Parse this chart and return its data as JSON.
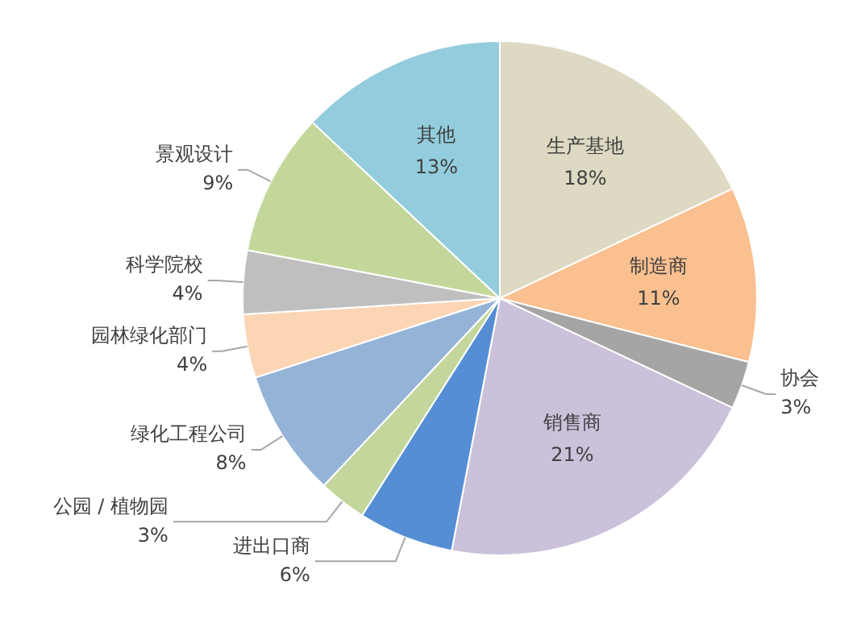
{
  "chart_data": {
    "type": "pie",
    "categories": [
      "生产基地",
      "制造商",
      "协会",
      "销售商",
      "进出口商",
      "公园 / 植物园",
      "绿化工程公司",
      "园林绿化部门",
      "科学院校",
      "景观设计",
      "其他"
    ],
    "values": [
      18,
      11,
      3,
      21,
      6,
      3,
      8,
      4,
      4,
      9,
      13
    ],
    "colors": [
      "#ddd9c3",
      "#fac090",
      "#a5a5a5",
      "#ccc1da",
      "#558ed5",
      "#c3d69b",
      "#95b3d7",
      "#fcd5b5",
      "#bfbfbf",
      "#c4d79b",
      "#93cddd"
    ],
    "value_labels": [
      "18%",
      "11%",
      "3%",
      "21%",
      "6%",
      "3%",
      "8%",
      "4%",
      "4%",
      "9%",
      "13%"
    ],
    "legend": false
  }
}
